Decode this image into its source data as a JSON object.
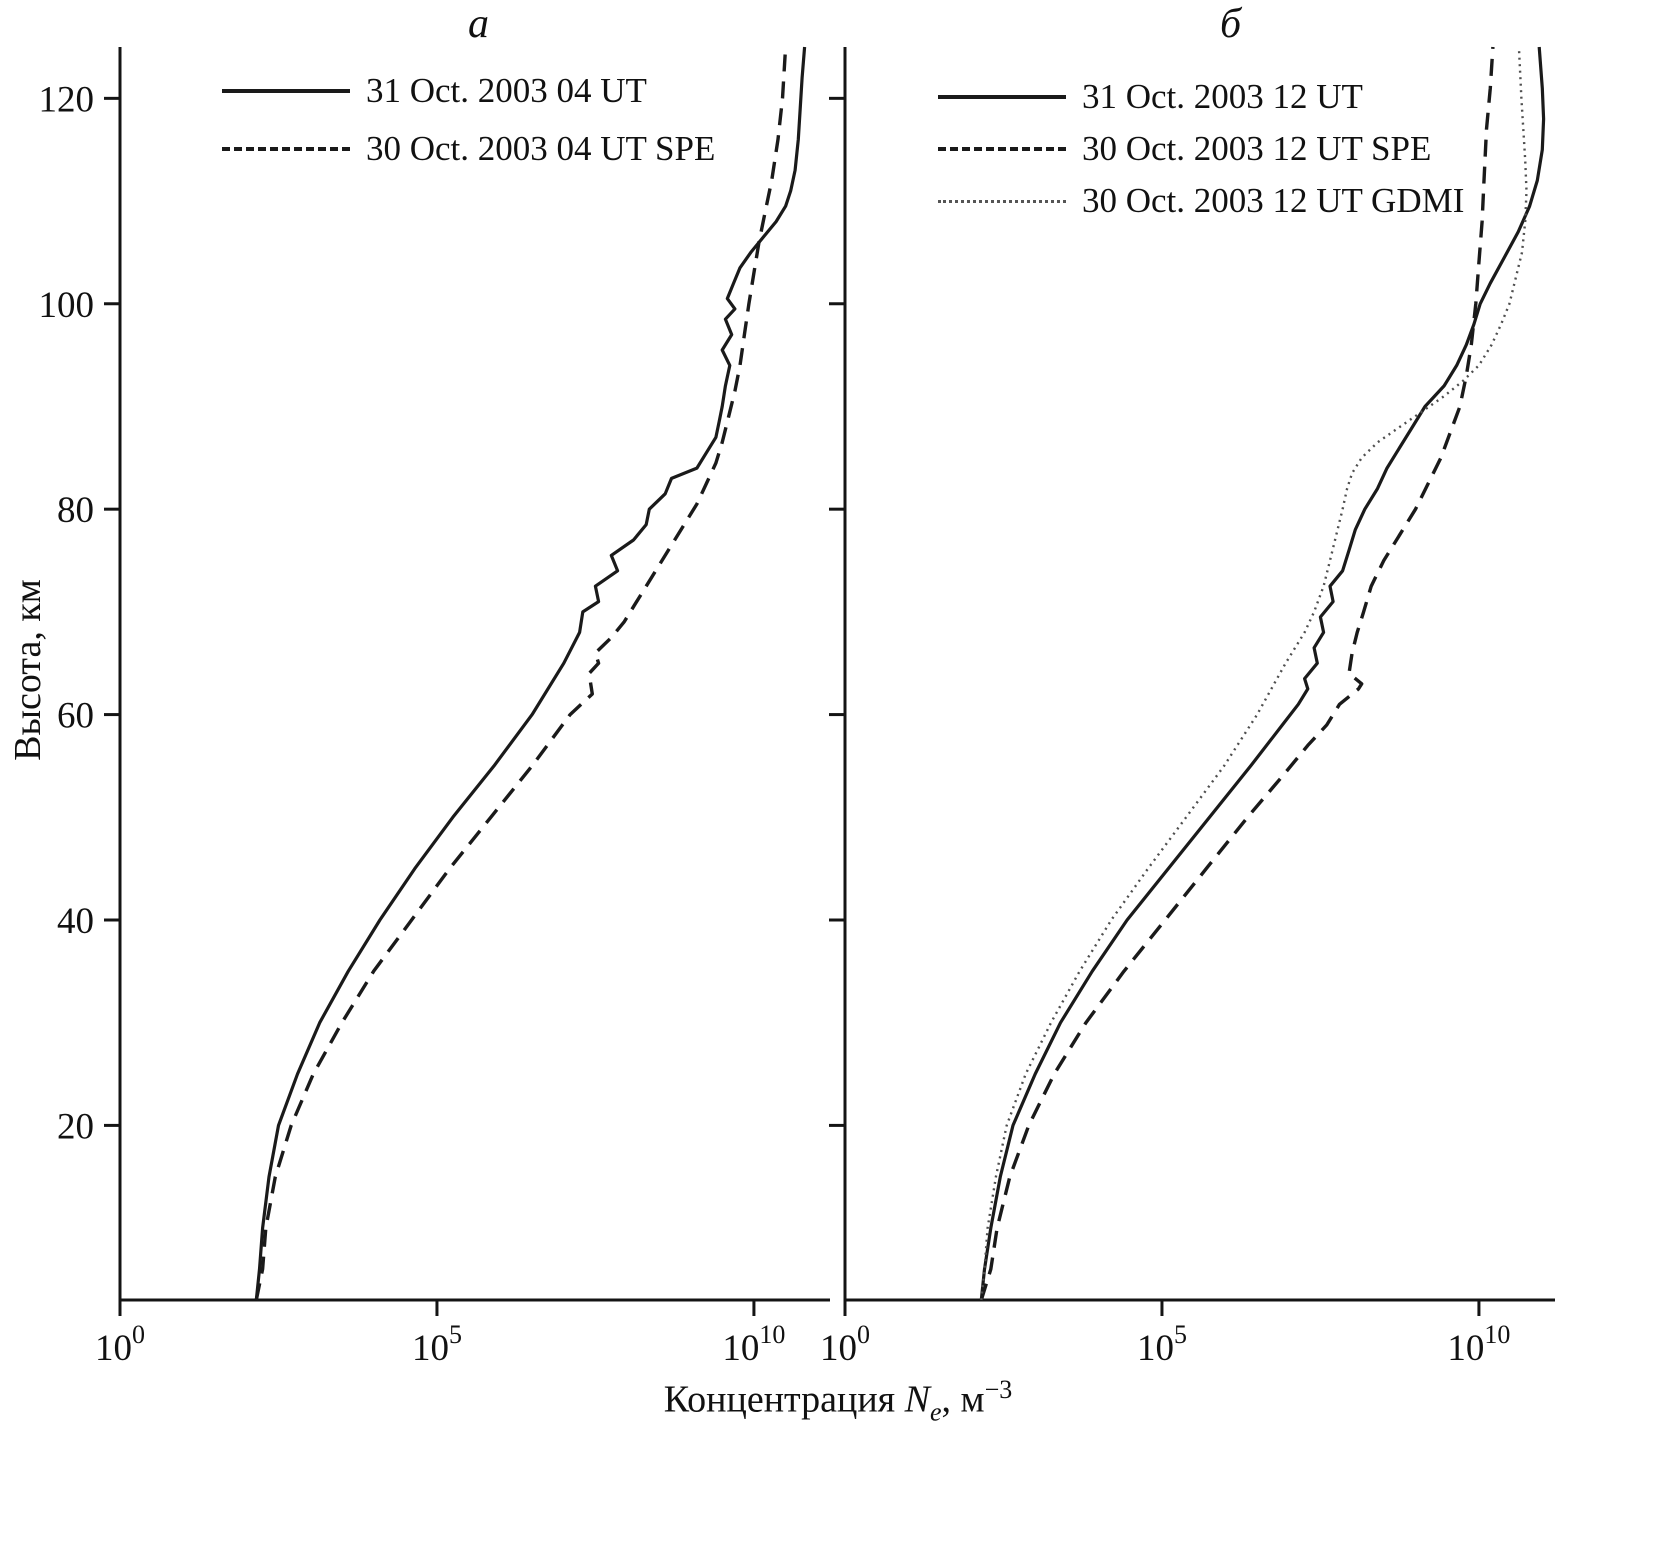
{
  "figure": {
    "ylabel": "Высота, км",
    "xlabel": {
      "prefix": "Концентрация ",
      "variable": "N",
      "subscript": "e",
      "unit_prefix": ", м",
      "exponent": "−3"
    }
  },
  "chart_data": [
    {
      "type": "line",
      "title": "a",
      "xlabel": "Концентрация Ne, м^-3",
      "ylabel": "Высота, км",
      "xscale": "log",
      "xlim_log10": [
        0,
        11.2
      ],
      "ylim": [
        3,
        125
      ],
      "xticks_log10": [
        0,
        5,
        10
      ],
      "yticks": [
        20,
        40,
        60,
        80,
        100,
        120
      ],
      "grid": false,
      "legend_position": "top-left",
      "series": [
        {
          "name": "31 Oct. 2003 04 UT",
          "style": "solid",
          "points_log10Ne_alt": [
            [
              2.15,
              3
            ],
            [
              2.2,
              6
            ],
            [
              2.25,
              10
            ],
            [
              2.35,
              15
            ],
            [
              2.5,
              20
            ],
            [
              2.8,
              25
            ],
            [
              3.15,
              30
            ],
            [
              3.6,
              35
            ],
            [
              4.1,
              40
            ],
            [
              4.65,
              45
            ],
            [
              5.25,
              50
            ],
            [
              5.9,
              55
            ],
            [
              6.5,
              60
            ],
            [
              7.0,
              65
            ],
            [
              7.25,
              68
            ],
            [
              7.3,
              70
            ],
            [
              7.55,
              71
            ],
            [
              7.5,
              72.5
            ],
            [
              7.85,
              74
            ],
            [
              7.75,
              75.5
            ],
            [
              8.1,
              77
            ],
            [
              8.3,
              78.5
            ],
            [
              8.35,
              80
            ],
            [
              8.6,
              81.5
            ],
            [
              8.7,
              83
            ],
            [
              9.1,
              84
            ],
            [
              9.25,
              85.5
            ],
            [
              9.4,
              87
            ],
            [
              9.45,
              88.5
            ],
            [
              9.5,
              90
            ],
            [
              9.55,
              92
            ],
            [
              9.62,
              94
            ],
            [
              9.5,
              95.5
            ],
            [
              9.65,
              97
            ],
            [
              9.55,
              98.5
            ],
            [
              9.7,
              99.5
            ],
            [
              9.58,
              100.5
            ],
            [
              9.68,
              102
            ],
            [
              9.78,
              103.5
            ],
            [
              9.95,
              105
            ],
            [
              10.15,
              106.5
            ],
            [
              10.35,
              108
            ],
            [
              10.5,
              109.5
            ],
            [
              10.58,
              111
            ],
            [
              10.65,
              113
            ],
            [
              10.7,
              116
            ],
            [
              10.73,
              119
            ],
            [
              10.76,
              122
            ],
            [
              10.8,
              125
            ]
          ]
        },
        {
          "name": "30 Oct. 2003 04 UT SPE",
          "style": "dashed",
          "points_log10Ne_alt": [
            [
              2.15,
              3
            ],
            [
              2.25,
              6
            ],
            [
              2.3,
              10
            ],
            [
              2.45,
              15
            ],
            [
              2.7,
              20
            ],
            [
              3.05,
              25
            ],
            [
              3.5,
              30
            ],
            [
              4.0,
              35
            ],
            [
              4.6,
              40
            ],
            [
              5.2,
              45
            ],
            [
              5.85,
              50
            ],
            [
              6.5,
              55
            ],
            [
              7.1,
              60
            ],
            [
              7.45,
              62
            ],
            [
              7.4,
              64
            ],
            [
              7.55,
              65
            ],
            [
              7.5,
              66
            ],
            [
              7.75,
              67.5
            ],
            [
              7.95,
              69
            ],
            [
              8.1,
              70.5
            ],
            [
              8.3,
              72.5
            ],
            [
              8.5,
              74.5
            ],
            [
              8.7,
              76.5
            ],
            [
              8.9,
              78.5
            ],
            [
              9.1,
              80.5
            ],
            [
              9.25,
              82.5
            ],
            [
              9.4,
              84.5
            ],
            [
              9.5,
              86.5
            ],
            [
              9.6,
              89
            ],
            [
              9.7,
              91.5
            ],
            [
              9.78,
              94
            ],
            [
              9.85,
              97
            ],
            [
              9.92,
              100
            ],
            [
              10.0,
              103
            ],
            [
              10.08,
              106
            ],
            [
              10.18,
              109
            ],
            [
              10.28,
              112
            ],
            [
              10.38,
              116
            ],
            [
              10.45,
              120
            ],
            [
              10.5,
              125
            ]
          ]
        }
      ]
    },
    {
      "type": "line",
      "title": "б",
      "xlabel": "Концентрация Ne, м^-3",
      "ylabel": "Высота, км",
      "xscale": "log",
      "xlim_log10": [
        0,
        11.2
      ],
      "ylim": [
        3,
        125
      ],
      "xticks_log10": [
        0,
        5,
        10
      ],
      "yticks": [
        20,
        40,
        60,
        80,
        100,
        120
      ],
      "grid": false,
      "legend_position": "top-left",
      "series": [
        {
          "name": "31 Oct. 2003 12 UT",
          "style": "solid",
          "points_log10Ne_alt": [
            [
              2.15,
              3
            ],
            [
              2.2,
              6
            ],
            [
              2.3,
              10
            ],
            [
              2.45,
              15
            ],
            [
              2.65,
              20
            ],
            [
              3.0,
              25
            ],
            [
              3.4,
              30
            ],
            [
              3.9,
              35
            ],
            [
              4.45,
              40
            ],
            [
              5.1,
              45
            ],
            [
              5.75,
              50
            ],
            [
              6.4,
              55
            ],
            [
              6.9,
              59
            ],
            [
              7.15,
              61
            ],
            [
              7.3,
              62.5
            ],
            [
              7.25,
              63.5
            ],
            [
              7.45,
              65
            ],
            [
              7.4,
              66.5
            ],
            [
              7.55,
              68
            ],
            [
              7.5,
              69.5
            ],
            [
              7.7,
              71
            ],
            [
              7.65,
              72.5
            ],
            [
              7.85,
              74
            ],
            [
              7.95,
              76
            ],
            [
              8.05,
              78
            ],
            [
              8.2,
              80
            ],
            [
              8.4,
              82
            ],
            [
              8.55,
              84
            ],
            [
              8.75,
              86
            ],
            [
              8.95,
              88
            ],
            [
              9.15,
              90
            ],
            [
              9.45,
              92
            ],
            [
              9.65,
              94
            ],
            [
              9.8,
              96
            ],
            [
              9.92,
              98
            ],
            [
              10.02,
              100
            ],
            [
              10.18,
              102
            ],
            [
              10.4,
              104.5
            ],
            [
              10.62,
              107
            ],
            [
              10.8,
              109.5
            ],
            [
              10.92,
              112
            ],
            [
              11.0,
              115
            ],
            [
              11.02,
              118
            ],
            [
              11.0,
              121
            ],
            [
              10.95,
              125
            ]
          ]
        },
        {
          "name": "30 Oct. 2003 12 UT SPE",
          "style": "dashed",
          "points_log10Ne_alt": [
            [
              2.15,
              3
            ],
            [
              2.3,
              6
            ],
            [
              2.4,
              10
            ],
            [
              2.6,
              15
            ],
            [
              2.9,
              20
            ],
            [
              3.3,
              25
            ],
            [
              3.8,
              30
            ],
            [
              4.4,
              35
            ],
            [
              5.05,
              40
            ],
            [
              5.7,
              45
            ],
            [
              6.35,
              50
            ],
            [
              6.9,
              54
            ],
            [
              7.3,
              57
            ],
            [
              7.6,
              59
            ],
            [
              7.8,
              61
            ],
            [
              8.1,
              62.5
            ],
            [
              8.15,
              63
            ],
            [
              7.95,
              64
            ],
            [
              8.0,
              66
            ],
            [
              8.08,
              68
            ],
            [
              8.18,
              70
            ],
            [
              8.3,
              72.5
            ],
            [
              8.5,
              75
            ],
            [
              8.75,
              77.5
            ],
            [
              9.0,
              80
            ],
            [
              9.2,
              82.5
            ],
            [
              9.4,
              85
            ],
            [
              9.55,
              87.5
            ],
            [
              9.7,
              90
            ],
            [
              9.8,
              93
            ],
            [
              9.88,
              96
            ],
            [
              9.95,
              100
            ],
            [
              10.0,
              104
            ],
            [
              10.05,
              108
            ],
            [
              10.08,
              112
            ],
            [
              10.12,
              117
            ],
            [
              10.18,
              121
            ],
            [
              10.22,
              125
            ]
          ]
        },
        {
          "name": "30 Oct. 2003 12 UT GDMI",
          "style": "dotted",
          "points_log10Ne_alt": [
            [
              2.15,
              3
            ],
            [
              2.2,
              6
            ],
            [
              2.25,
              10
            ],
            [
              2.38,
              15
            ],
            [
              2.55,
              20
            ],
            [
              2.85,
              25
            ],
            [
              3.25,
              30
            ],
            [
              3.7,
              35
            ],
            [
              4.2,
              40
            ],
            [
              4.78,
              45
            ],
            [
              5.38,
              50
            ],
            [
              5.98,
              55
            ],
            [
              6.5,
              60
            ],
            [
              6.95,
              65
            ],
            [
              7.25,
              68
            ],
            [
              7.4,
              70
            ],
            [
              7.55,
              72.5
            ],
            [
              7.65,
              75
            ],
            [
              7.75,
              77.5
            ],
            [
              7.85,
              80
            ],
            [
              7.92,
              82
            ],
            [
              8.0,
              83.5
            ],
            [
              8.15,
              85
            ],
            [
              8.4,
              86.5
            ],
            [
              8.75,
              88
            ],
            [
              9.1,
              89.5
            ],
            [
              9.45,
              91
            ],
            [
              9.75,
              92.5
            ],
            [
              10.0,
              94
            ],
            [
              10.2,
              96
            ],
            [
              10.35,
              98
            ],
            [
              10.48,
              100
            ],
            [
              10.58,
              102.5
            ],
            [
              10.68,
              105
            ],
            [
              10.73,
              108
            ],
            [
              10.75,
              111
            ],
            [
              10.73,
              114
            ],
            [
              10.7,
              117
            ],
            [
              10.67,
              120
            ],
            [
              10.63,
              125
            ]
          ]
        }
      ]
    }
  ]
}
